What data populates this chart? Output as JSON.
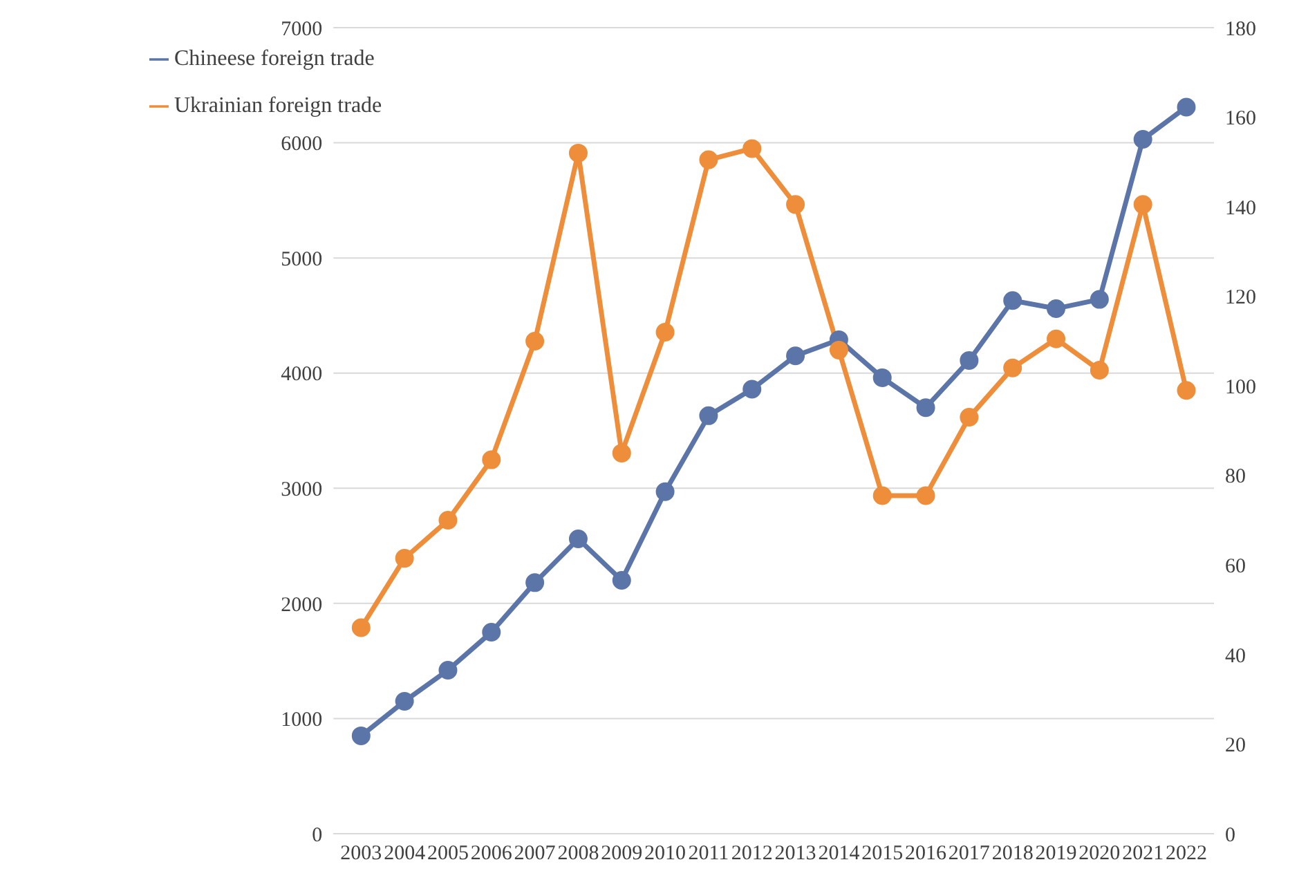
{
  "chart_data": {
    "type": "line",
    "categories": [
      "2003",
      "2004",
      "2005",
      "2006",
      "2007",
      "2008",
      "2009",
      "2010",
      "2011",
      "2012",
      "2013",
      "2014",
      "2015",
      "2016",
      "2017",
      "2018",
      "2019",
      "2020",
      "2021",
      "2022"
    ],
    "series": [
      {
        "name": "Chineese foreign trade",
        "color": "#5b75a8",
        "values": [
          850,
          1150,
          1420,
          1750,
          2180,
          2560,
          2200,
          2970,
          3630,
          3860,
          4150,
          4290,
          3960,
          3700,
          4110,
          4630,
          4560,
          4640,
          6030,
          6310
        ]
      },
      {
        "name": "Ukrainian foreign trade",
        "color": "#ee8e3a",
        "axis": "y2",
        "values": [
          46,
          61.5,
          70,
          83.5,
          110,
          152,
          85,
          112,
          150.5,
          153,
          140.5,
          108,
          75.5,
          75.5,
          93,
          104,
          110.5,
          103.5,
          140.5,
          99
        ]
      }
    ],
    "ylim": [
      0,
      7000
    ],
    "yticks": [
      0,
      1000,
      2000,
      3000,
      4000,
      5000,
      6000,
      7000
    ],
    "y2lim": [
      0,
      180
    ],
    "y2ticks": [
      0,
      20,
      40,
      60,
      80,
      100,
      120,
      140,
      160,
      180
    ],
    "grid": "y",
    "legend": "top left",
    "marker": "circle",
    "line_style": "solid"
  }
}
